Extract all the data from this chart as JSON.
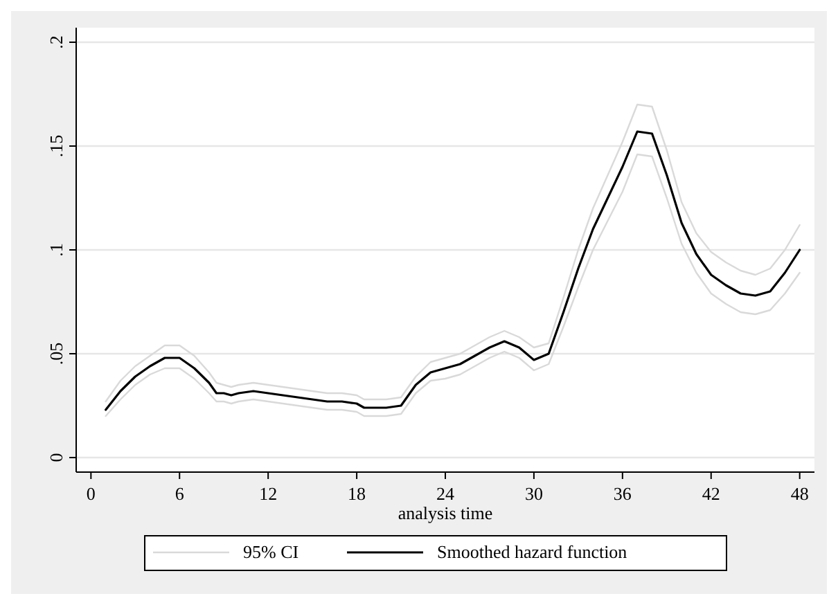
{
  "chart_data": {
    "type": "line",
    "xlabel": "analysis time",
    "x": [
      1,
      2,
      3,
      4,
      5,
      6,
      7,
      8,
      8.5,
      9,
      9.5,
      10,
      11,
      12,
      13,
      14,
      15,
      16,
      17,
      18,
      18.5,
      19,
      20,
      21,
      22,
      23,
      24,
      25,
      26,
      27,
      28,
      29,
      30,
      31,
      32,
      33,
      34,
      35,
      36,
      37,
      38,
      39,
      40,
      41,
      42,
      43,
      44,
      45,
      46,
      47,
      48
    ],
    "series": [
      {
        "name": "95% CI",
        "color": "#d9d9d9",
        "values": [
          0.027,
          0.037,
          0.044,
          0.049,
          0.054,
          0.054,
          0.049,
          0.041,
          0.036,
          0.035,
          0.034,
          0.035,
          0.036,
          0.035,
          0.034,
          0.033,
          0.032,
          0.031,
          0.031,
          0.03,
          0.028,
          0.028,
          0.028,
          0.029,
          0.039,
          0.046,
          0.048,
          0.05,
          0.054,
          0.058,
          0.061,
          0.058,
          0.053,
          0.055,
          0.077,
          0.1,
          0.12,
          0.136,
          0.152,
          0.17,
          0.169,
          0.148,
          0.123,
          0.108,
          0.099,
          0.094,
          0.09,
          0.088,
          0.091,
          0.1,
          0.112
        ]
      },
      {
        "color": "#d9d9d9",
        "values": [
          0.02,
          0.028,
          0.035,
          0.04,
          0.043,
          0.043,
          0.038,
          0.031,
          0.027,
          0.027,
          0.026,
          0.027,
          0.028,
          0.027,
          0.026,
          0.025,
          0.024,
          0.023,
          0.023,
          0.022,
          0.02,
          0.02,
          0.02,
          0.021,
          0.031,
          0.037,
          0.038,
          0.04,
          0.044,
          0.048,
          0.051,
          0.048,
          0.042,
          0.045,
          0.063,
          0.082,
          0.1,
          0.114,
          0.128,
          0.146,
          0.145,
          0.125,
          0.103,
          0.089,
          0.079,
          0.074,
          0.07,
          0.069,
          0.071,
          0.079,
          0.089
        ]
      },
      {
        "name": "Smoothed hazard function",
        "color": "#000000",
        "values": [
          0.023,
          0.032,
          0.039,
          0.044,
          0.048,
          0.048,
          0.043,
          0.036,
          0.031,
          0.031,
          0.03,
          0.031,
          0.032,
          0.031,
          0.03,
          0.029,
          0.028,
          0.027,
          0.027,
          0.026,
          0.024,
          0.024,
          0.024,
          0.025,
          0.035,
          0.041,
          0.043,
          0.045,
          0.049,
          0.053,
          0.056,
          0.053,
          0.047,
          0.05,
          0.07,
          0.091,
          0.11,
          0.125,
          0.14,
          0.157,
          0.156,
          0.136,
          0.113,
          0.098,
          0.088,
          0.083,
          0.079,
          0.078,
          0.08,
          0.089,
          0.1
        ]
      }
    ],
    "xlim": [
      -1,
      49
    ],
    "xticks": [
      0,
      6,
      12,
      18,
      24,
      30,
      36,
      42,
      48
    ],
    "ylim": [
      -0.007,
      0.207
    ],
    "yticks": [
      0,
      {
        "value": 0.05,
        "label": ".05"
      },
      {
        "value": 0.1,
        "label": ".1"
      },
      {
        "value": 0.15,
        "label": ".15"
      },
      {
        "value": 0.2,
        "label": ".2"
      }
    ],
    "grid": "y",
    "legend": "bottom",
    "marker": "none",
    "line_style": "solid"
  }
}
